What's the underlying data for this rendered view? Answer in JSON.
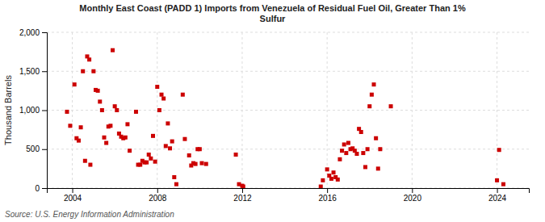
{
  "chart_data": {
    "type": "scatter",
    "title": "Monthly East Coast (PADD 1) Imports from Venezuela of Residual Fuel Oil, Greater Than 1%\nSulfur",
    "ylabel": "Thousand Barrels",
    "source": "Source: U.S. Energy Information Administration",
    "color": "#cc0000",
    "marker": "square",
    "grid": true,
    "xlim": [
      2002.8,
      2025.5
    ],
    "ylim": [
      0,
      2000
    ],
    "xticks": [
      2004,
      2008,
      2012,
      2016,
      2020,
      2024
    ],
    "yticks": [
      0,
      500,
      {
        "value": 1000,
        "label": "1,000"
      },
      {
        "value": 1500,
        "label": "1,500"
      },
      {
        "value": 2000,
        "label": "2,000"
      }
    ],
    "x": [
      2003.75,
      2003.9,
      2004.1,
      2004.2,
      2004.3,
      2004.4,
      2004.5,
      2004.6,
      2004.7,
      2004.8,
      2004.85,
      2005.0,
      2005.1,
      2005.2,
      2005.3,
      2005.4,
      2005.5,
      2005.6,
      2005.7,
      2005.8,
      2005.9,
      2006.0,
      2006.1,
      2006.2,
      2006.3,
      2006.4,
      2006.5,
      2006.6,
      2006.7,
      2007.0,
      2007.1,
      2007.2,
      2007.3,
      2007.4,
      2007.5,
      2007.6,
      2007.7,
      2007.8,
      2007.9,
      2008.0,
      2008.1,
      2008.2,
      2008.3,
      2008.4,
      2008.5,
      2008.6,
      2008.7,
      2008.8,
      2008.9,
      2009.2,
      2009.3,
      2009.5,
      2009.6,
      2009.7,
      2009.8,
      2009.9,
      2010.0,
      2010.1,
      2010.3,
      2011.7,
      2011.85,
      2012.0,
      2012.05,
      2015.7,
      2015.8,
      2016.0,
      2016.1,
      2016.2,
      2016.3,
      2016.4,
      2016.5,
      2016.6,
      2016.7,
      2016.8,
      2016.9,
      2017.0,
      2017.1,
      2017.2,
      2017.3,
      2017.4,
      2017.5,
      2017.6,
      2017.7,
      2017.8,
      2017.9,
      2018.0,
      2018.1,
      2018.2,
      2018.3,
      2018.4,
      2018.5,
      2019.0,
      2024.0,
      2024.1,
      2024.3
    ],
    "values": [
      980,
      800,
      1330,
      640,
      610,
      780,
      1500,
      350,
      1690,
      1650,
      300,
      1500,
      1260,
      1250,
      1110,
      1000,
      650,
      580,
      790,
      800,
      1770,
      1050,
      1000,
      700,
      660,
      640,
      650,
      820,
      480,
      980,
      300,
      300,
      350,
      330,
      330,
      430,
      380,
      670,
      340,
      1300,
      1000,
      1200,
      1150,
      540,
      830,
      510,
      600,
      140,
      50,
      1200,
      630,
      420,
      290,
      320,
      310,
      500,
      500,
      320,
      310,
      430,
      50,
      30,
      20,
      20,
      100,
      240,
      160,
      120,
      200,
      140,
      110,
      370,
      480,
      560,
      450,
      580,
      500,
      510,
      480,
      440,
      760,
      720,
      450,
      270,
      500,
      1050,
      1200,
      1330,
      640,
      250,
      500,
      1050,
      100,
      490,
      50
    ]
  }
}
